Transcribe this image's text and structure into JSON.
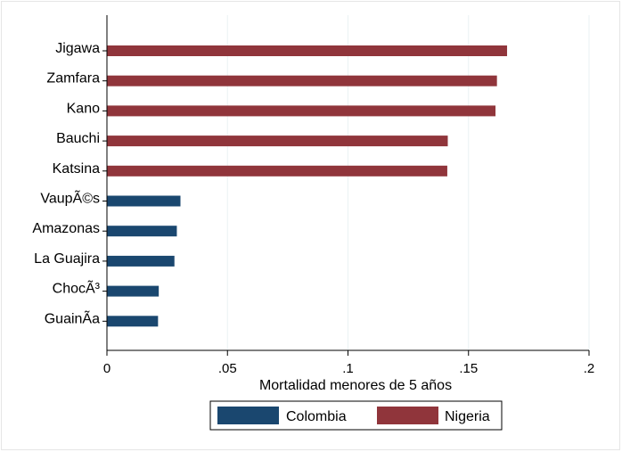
{
  "chart_data": {
    "type": "bar",
    "orientation": "horizontal",
    "xlabel": "Mortalidad menores de 5 años",
    "ylabel": "",
    "xlim": [
      0,
      0.2
    ],
    "xticks": [
      0,
      0.05,
      0.1,
      0.15,
      0.2
    ],
    "xtick_labels": [
      "0",
      ".05",
      ".1",
      ".15",
      ".2"
    ],
    "grid": "vertical",
    "legend_position": "bottom",
    "categories": [
      "Jigawa",
      "Zamfara",
      "Kano",
      "Bauchi",
      "Katsina",
      "VaupÃ©s",
      "Amazonas",
      "La Guajira",
      "ChocÃ³",
      "GuainÃ­a"
    ],
    "series": [
      {
        "name": "Colombia",
        "color": "#1a476f",
        "values": [
          null,
          null,
          null,
          null,
          null,
          0.0305,
          0.029,
          0.028,
          0.0215,
          0.0212
        ]
      },
      {
        "name": "Nigeria",
        "color": "#90353b",
        "values": [
          0.166,
          0.1618,
          0.1612,
          0.1414,
          0.1412,
          null,
          null,
          null,
          null,
          null
        ]
      }
    ]
  }
}
